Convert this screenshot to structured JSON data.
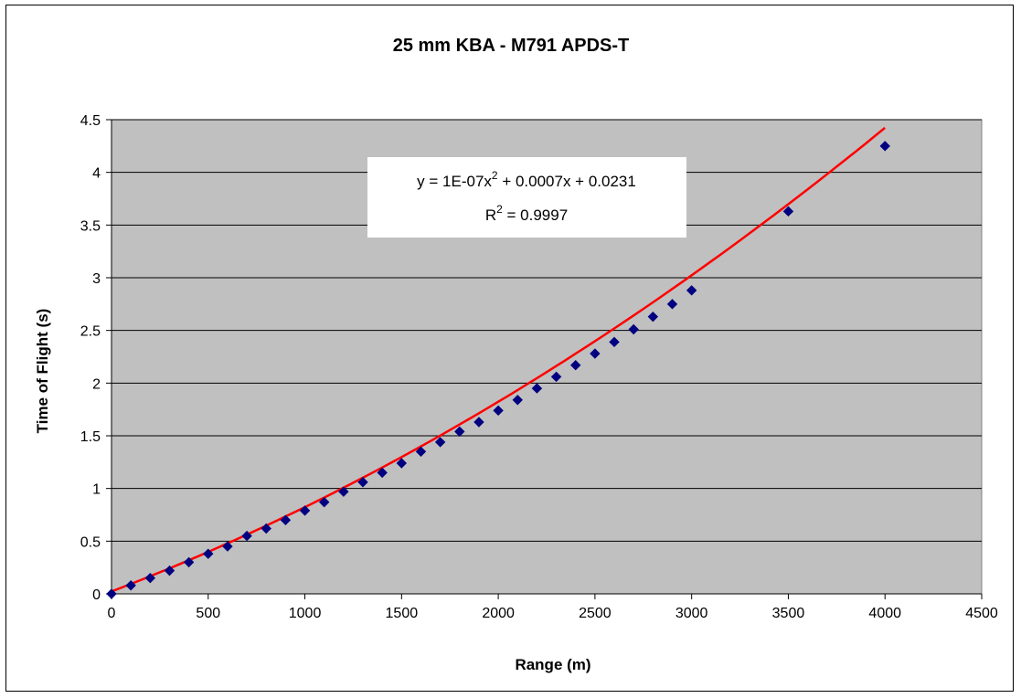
{
  "chart_data": {
    "type": "scatter",
    "title": "25 mm KBA - M791 APDS-T",
    "xlabel": "Range (m)",
    "ylabel": "Time of Flight (s)",
    "xlim": [
      0,
      4500
    ],
    "ylim": [
      0,
      4.5
    ],
    "x_ticks": [
      "0",
      "500",
      "1000",
      "1500",
      "2000",
      "2500",
      "3000",
      "3500",
      "4000",
      "4500"
    ],
    "y_ticks": [
      "0",
      "0.5",
      "1",
      "1.5",
      "2",
      "2.5",
      "3",
      "3.5",
      "4",
      "4.5"
    ],
    "x_tick_values": [
      0,
      500,
      1000,
      1500,
      2000,
      2500,
      3000,
      3500,
      4000,
      4500
    ],
    "y_tick_values": [
      0,
      0.5,
      1,
      1.5,
      2,
      2.5,
      3,
      3.5,
      4,
      4.5
    ],
    "grid": "horizontal",
    "plot_background": "#c0c0c0",
    "series": [
      {
        "marker": "diamond",
        "color": "#000080",
        "x": [
          0,
          100,
          200,
          300,
          400,
          500,
          600,
          700,
          800,
          900,
          1000,
          1100,
          1200,
          1300,
          1400,
          1500,
          1600,
          1700,
          1800,
          1900,
          2000,
          2100,
          2200,
          2300,
          2400,
          2500,
          2600,
          2700,
          2800,
          2900,
          3000,
          3500,
          4000
        ],
        "y": [
          0,
          0.08,
          0.15,
          0.22,
          0.3,
          0.38,
          0.45,
          0.55,
          0.62,
          0.7,
          0.79,
          0.87,
          0.97,
          1.06,
          1.15,
          1.24,
          1.35,
          1.44,
          1.54,
          1.63,
          1.74,
          1.84,
          1.95,
          2.06,
          2.17,
          2.28,
          2.39,
          2.51,
          2.63,
          2.75,
          2.88,
          3.63,
          4.25
        ]
      }
    ],
    "trendline": {
      "type": "polynomial",
      "color": "#ff0000",
      "coefficients": {
        "a": 1e-07,
        "b": 0.0007,
        "c": 0.0231
      },
      "x_range": [
        0,
        4000
      ],
      "equation_label": {
        "prefix": "y = 1E-07x",
        "exp": "2",
        "suffix": " + 0.0007x + 0.0231",
        "r_label": "R",
        "r_exp": "2",
        "r_value": " = 0.9997"
      }
    }
  }
}
